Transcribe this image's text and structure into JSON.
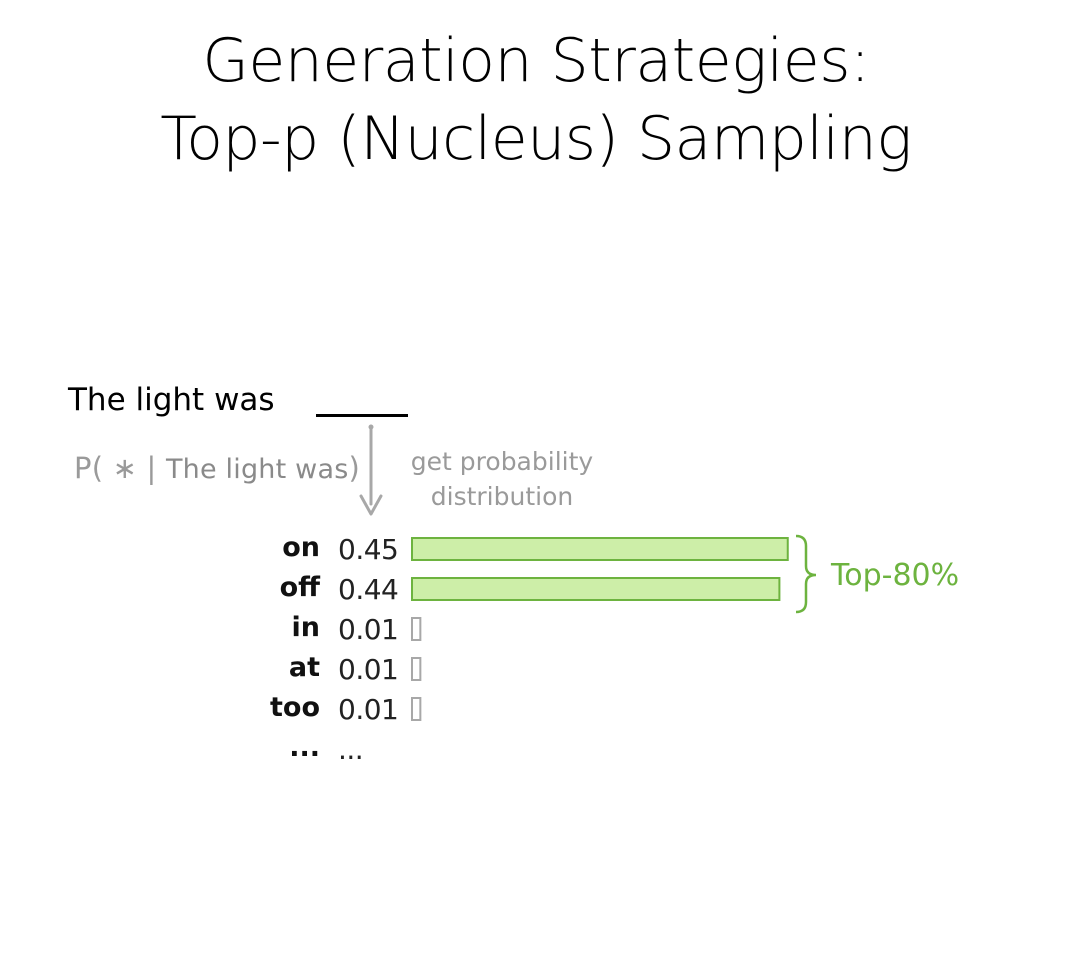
{
  "title": {
    "line1": "Generation Strategies:",
    "line2": "Top-p (Nucleus) Sampling"
  },
  "prompt": {
    "text": "The light was",
    "blank": "_____"
  },
  "conditional": {
    "prefix": "P( ∗ | ",
    "context": "The light was",
    "suffix": ")"
  },
  "step_label": {
    "line1": "get probability",
    "line2": "distribution"
  },
  "nucleus": {
    "label": "Top-80%"
  },
  "colors": {
    "selected_fill": "#cdeea8",
    "selected_stroke": "#6db33f",
    "unselected_stroke": "#a8a8a8",
    "arrow": "#a8a8a8",
    "label_gray": "#9a9a9a",
    "nucleus_green": "#6db33f"
  },
  "chart_data": {
    "type": "bar",
    "orientation": "horizontal",
    "categories": [
      "on",
      "off",
      "in",
      "at",
      "too",
      "..."
    ],
    "values": [
      0.45,
      0.44,
      0.01,
      0.01,
      0.01,
      null
    ],
    "value_labels": [
      "0.45",
      "0.44",
      "0.01",
      "0.01",
      "0.01",
      "..."
    ],
    "selected": [
      true,
      true,
      false,
      false,
      false,
      false
    ],
    "title": "",
    "xlabel": "",
    "ylabel": ""
  }
}
